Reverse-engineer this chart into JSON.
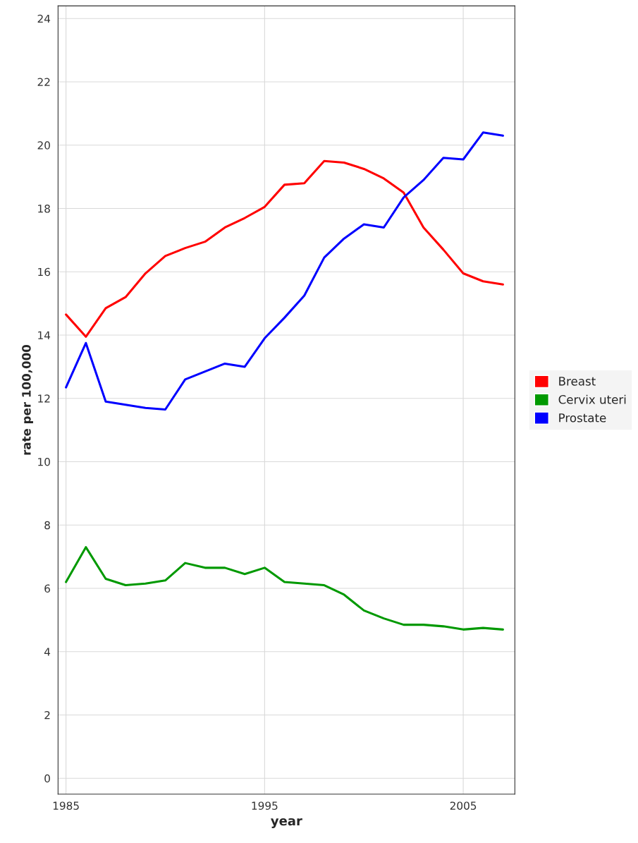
{
  "chart_data": {
    "type": "line",
    "xlabel": "year",
    "ylabel": "rate per 100,000",
    "x": [
      1985,
      1986,
      1987,
      1988,
      1989,
      1990,
      1991,
      1992,
      1993,
      1994,
      1995,
      1996,
      1997,
      1998,
      1999,
      2000,
      2001,
      2002,
      2003,
      2004,
      2005,
      2006,
      2007
    ],
    "series": [
      {
        "name": "Breast",
        "color": "#ff0000",
        "values": [
          14.65,
          13.95,
          14.85,
          15.2,
          15.95,
          16.5,
          16.75,
          16.95,
          17.4,
          17.7,
          18.05,
          18.75,
          18.8,
          19.5,
          19.45,
          19.25,
          18.95,
          18.5,
          17.4,
          16.7,
          15.95,
          15.7,
          15.6
        ]
      },
      {
        "name": "Cervix uteri",
        "color": "#009900",
        "values": [
          6.2,
          7.3,
          6.3,
          6.1,
          6.15,
          6.25,
          6.8,
          6.65,
          6.65,
          6.45,
          6.65,
          6.2,
          6.15,
          6.1,
          5.8,
          5.3,
          5.05,
          4.85,
          4.85,
          4.8,
          4.7,
          4.75,
          4.7
        ]
      },
      {
        "name": "Prostate",
        "color": "#0000ff",
        "values": [
          12.35,
          13.75,
          11.9,
          11.8,
          11.7,
          11.65,
          12.6,
          12.85,
          13.1,
          13.0,
          13.9,
          14.55,
          15.25,
          16.45,
          17.05,
          17.5,
          17.4,
          18.35,
          18.9,
          19.6,
          19.55,
          20.4,
          20.3
        ]
      }
    ],
    "xlim": [
      1984.6,
      2007.6
    ],
    "xticks": [
      1985,
      1995,
      2005
    ],
    "ylim": [
      -0.5,
      24.4
    ],
    "yticks": [
      0,
      2,
      4,
      6,
      8,
      10,
      12,
      14,
      16,
      18,
      20,
      22,
      24
    ],
    "grid": true,
    "legend": "right",
    "marker": "none",
    "line_style": "solid"
  }
}
